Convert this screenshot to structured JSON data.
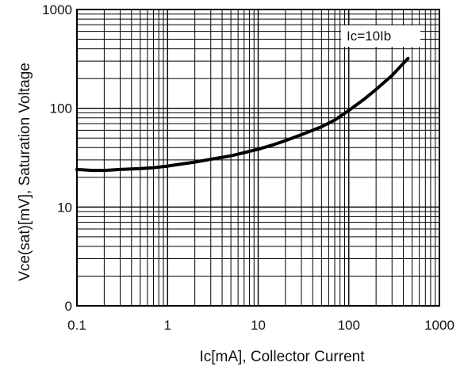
{
  "chart_data": {
    "type": "line",
    "title": "",
    "xlabel": "Ic[mA], Collector Current",
    "ylabel": "Vce(sat)[mV], Saturation Voltage",
    "x_scale": "log",
    "y_scale": "log",
    "xlim": [
      0.1,
      1000
    ],
    "ylim": [
      1,
      1000
    ],
    "x_ticks": [
      {
        "value": 0.1,
        "label": "0.1"
      },
      {
        "value": 1,
        "label": "1"
      },
      {
        "value": 10,
        "label": "10"
      },
      {
        "value": 100,
        "label": "100"
      },
      {
        "value": 1000,
        "label": "1000"
      }
    ],
    "y_ticks": [
      {
        "value": 1,
        "label": "0"
      },
      {
        "value": 10,
        "label": "10"
      },
      {
        "value": 100,
        "label": "100"
      },
      {
        "value": 1000,
        "label": "1000"
      }
    ],
    "grid": true,
    "legend_position": "top-right",
    "series": [
      {
        "name": "Ic=10Ib",
        "color": "#000000",
        "x": [
          0.1,
          0.15,
          0.2,
          0.3,
          0.5,
          0.7,
          1,
          1.5,
          2,
          3,
          5,
          7,
          10,
          15,
          20,
          30,
          50,
          70,
          100,
          150,
          200,
          300,
          450
        ],
        "y": [
          24,
          23.5,
          23.5,
          24,
          24.5,
          25,
          26,
          27.5,
          28.5,
          30.5,
          33,
          35.5,
          38.5,
          43,
          47,
          54,
          65,
          76,
          95,
          125,
          155,
          215,
          320
        ]
      }
    ]
  }
}
